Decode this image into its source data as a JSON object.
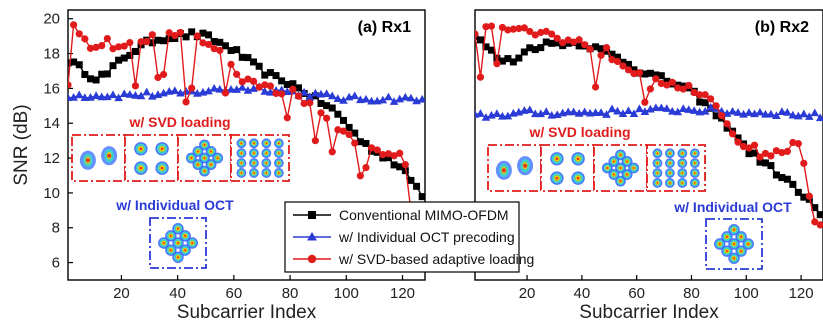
{
  "chart_data": [
    {
      "type": "line",
      "panel_label": "(a) Rx1",
      "xlabel": "Subcarrier Index",
      "ylabel": "SNR (dB)",
      "xlim": [
        1,
        128
      ],
      "ylim": [
        5,
        20.5
      ],
      "x_ticks": [
        20,
        40,
        60,
        80,
        100,
        120
      ],
      "y_ticks": [
        6,
        8,
        10,
        12,
        14,
        16,
        18,
        20
      ],
      "grid": false,
      "inset_labels": {
        "svd": "w/ SVD loading",
        "oct": "w/ Individual OCT"
      },
      "series": [
        {
          "name": "Conventional MIMO-OFDM",
          "color": "#000000",
          "marker": "square",
          "anchors": [
            [
              1,
              17.6
            ],
            [
              5,
              17.2
            ],
            [
              10,
              16.6
            ],
            [
              15,
              16.8
            ],
            [
              20,
              17.7
            ],
            [
              25,
              18.2
            ],
            [
              30,
              18.7
            ],
            [
              35,
              18.9
            ],
            [
              40,
              19.0
            ],
            [
              45,
              19.1
            ],
            [
              50,
              19.0
            ],
            [
              55,
              18.6
            ],
            [
              60,
              18.2
            ],
            [
              65,
              17.6
            ],
            [
              70,
              17.0
            ],
            [
              75,
              16.6
            ],
            [
              80,
              16.3
            ],
            [
              85,
              15.8
            ],
            [
              90,
              15.3
            ],
            [
              95,
              14.8
            ],
            [
              100,
              14.0
            ],
            [
              105,
              13.0
            ],
            [
              110,
              12.4
            ],
            [
              115,
              12.0
            ],
            [
              120,
              11.3
            ],
            [
              124,
              10.6
            ],
            [
              127,
              9.8
            ]
          ]
        },
        {
          "name": "w/ Individual OCT precoding",
          "color": "#2b3bd6",
          "marker": "triangle",
          "anchors": [
            [
              1,
              15.6
            ],
            [
              20,
              15.6
            ],
            [
              40,
              15.7
            ],
            [
              60,
              16.0
            ],
            [
              70,
              16.0
            ],
            [
              80,
              15.8
            ],
            [
              90,
              15.6
            ],
            [
              100,
              15.4
            ],
            [
              110,
              15.4
            ],
            [
              120,
              15.4
            ],
            [
              127,
              15.3
            ]
          ]
        },
        {
          "name": "w/ SVD-based adaptive loading",
          "color": "#e11b1b",
          "marker": "circle",
          "anchors": [
            [
              1,
              19.8
            ],
            [
              5,
              19.3
            ],
            [
              10,
              18.2
            ],
            [
              15,
              18.6
            ],
            [
              20,
              18.2
            ],
            [
              25,
              18.7
            ],
            [
              30,
              19.0
            ],
            [
              35,
              19.1
            ],
            [
              40,
              19.0
            ],
            [
              45,
              18.9
            ],
            [
              50,
              18.6
            ],
            [
              55,
              18.0
            ],
            [
              60,
              17.0
            ],
            [
              65,
              16.3
            ],
            [
              70,
              16.2
            ],
            [
              75,
              15.9
            ],
            [
              80,
              15.8
            ],
            [
              85,
              15.4
            ],
            [
              90,
              14.5
            ],
            [
              95,
              13.8
            ],
            [
              100,
              13.3
            ],
            [
              105,
              12.9
            ],
            [
              110,
              12.6
            ],
            [
              115,
              12.4
            ],
            [
              120,
              11.9
            ],
            [
              124,
              10.5
            ],
            [
              127,
              9.8
            ]
          ]
        }
      ]
    },
    {
      "type": "line",
      "panel_label": "(b) Rx2",
      "xlabel": "Subcarrier Index",
      "ylabel": "",
      "xlim": [
        1,
        128
      ],
      "ylim": [
        5,
        20.5
      ],
      "x_ticks": [
        20,
        40,
        60,
        80,
        100,
        120
      ],
      "y_ticks": [],
      "grid": false,
      "inset_labels": {
        "svd": "w/ SVD loading",
        "oct": "w/ Individual OCT"
      },
      "series": [
        {
          "name": "Conventional MIMO-OFDM",
          "color": "#000000",
          "marker": "square",
          "anchors": [
            [
              1,
              19.0
            ],
            [
              5,
              18.4
            ],
            [
              10,
              17.6
            ],
            [
              15,
              17.6
            ],
            [
              20,
              18.2
            ],
            [
              25,
              18.5
            ],
            [
              30,
              18.6
            ],
            [
              35,
              18.6
            ],
            [
              40,
              18.6
            ],
            [
              45,
              18.3
            ],
            [
              50,
              18.0
            ],
            [
              55,
              17.6
            ],
            [
              60,
              17.1
            ],
            [
              65,
              16.8
            ],
            [
              70,
              16.5
            ],
            [
              75,
              16.2
            ],
            [
              80,
              15.8
            ],
            [
              85,
              15.1
            ],
            [
              90,
              14.3
            ],
            [
              95,
              13.6
            ],
            [
              100,
              12.5
            ],
            [
              105,
              11.9
            ],
            [
              110,
              11.3
            ],
            [
              115,
              10.7
            ],
            [
              120,
              9.9
            ],
            [
              124,
              9.4
            ],
            [
              127,
              8.6
            ]
          ]
        },
        {
          "name": "w/ Individual OCT precoding",
          "color": "#2b3bd6",
          "marker": "triangle",
          "anchors": [
            [
              1,
              14.4
            ],
            [
              20,
              14.6
            ],
            [
              40,
              14.6
            ],
            [
              60,
              14.7
            ],
            [
              80,
              14.8
            ],
            [
              90,
              14.7
            ],
            [
              100,
              14.6
            ],
            [
              110,
              14.6
            ],
            [
              120,
              14.5
            ],
            [
              127,
              14.4
            ]
          ]
        },
        {
          "name": "w/ SVD-based adaptive loading",
          "color": "#e11b1b",
          "marker": "circle",
          "anchors": [
            [
              1,
              19.2
            ],
            [
              10,
              19.6
            ],
            [
              20,
              19.3
            ],
            [
              30,
              19.0
            ],
            [
              40,
              18.6
            ],
            [
              50,
              18.0
            ],
            [
              60,
              17.0
            ],
            [
              70,
              16.5
            ],
            [
              80,
              15.9
            ],
            [
              90,
              14.8
            ],
            [
              95,
              13.5
            ],
            [
              100,
              12.7
            ],
            [
              105,
              12.3
            ],
            [
              110,
              12.3
            ],
            [
              115,
              12.5
            ],
            [
              120,
              12.8
            ],
            [
              124,
              9.0
            ],
            [
              127,
              7.9
            ]
          ]
        }
      ]
    }
  ],
  "legend": {
    "placement": "bottom-center",
    "items": [
      {
        "label": "Conventional MIMO-OFDM",
        "color": "#000000",
        "marker": "square"
      },
      {
        "label": "w/  Individual OCT precoding",
        "color": "#2b3bd6",
        "marker": "triangle"
      },
      {
        "label": "w/  SVD-based adaptive loading",
        "color": "#e11b1b",
        "marker": "circle"
      }
    ]
  },
  "colors": {
    "svd_inset_border": "#e11b1b",
    "oct_inset_border": "#2b3bd6",
    "conventional": "#000000",
    "oct": "#2b3bd6",
    "svd": "#e11b1b"
  }
}
